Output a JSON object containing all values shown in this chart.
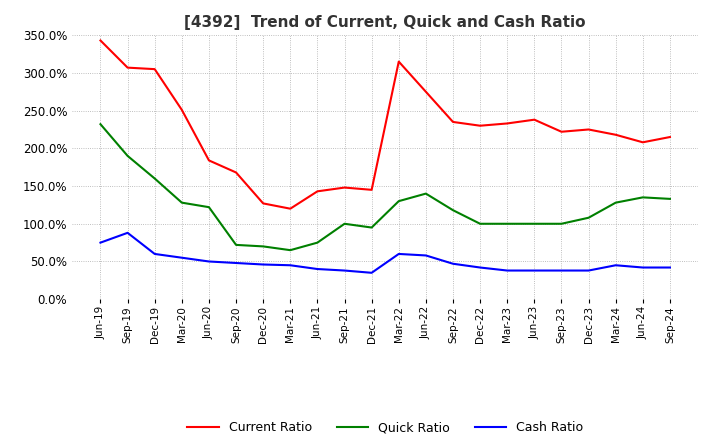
{
  "title": "[4392]  Trend of Current, Quick and Cash Ratio",
  "x_labels": [
    "Jun-19",
    "Sep-19",
    "Dec-19",
    "Mar-20",
    "Jun-20",
    "Sep-20",
    "Dec-20",
    "Mar-21",
    "Jun-21",
    "Sep-21",
    "Dec-21",
    "Mar-22",
    "Jun-22",
    "Sep-22",
    "Dec-22",
    "Mar-23",
    "Jun-23",
    "Sep-23",
    "Dec-23",
    "Mar-24",
    "Jun-24",
    "Sep-24"
  ],
  "current_vals": [
    343,
    307,
    305,
    251,
    184,
    168,
    127,
    120,
    143,
    148,
    145,
    315,
    275,
    235,
    230,
    233,
    238,
    222,
    225,
    218,
    208,
    215
  ],
  "quick_vals": [
    232,
    190,
    160,
    128,
    122,
    72,
    70,
    65,
    75,
    100,
    95,
    130,
    140,
    118,
    100,
    100,
    100,
    100,
    108,
    128,
    135,
    133
  ],
  "cash_vals": [
    75,
    88,
    60,
    55,
    50,
    48,
    46,
    45,
    40,
    38,
    35,
    60,
    58,
    47,
    42,
    38,
    38,
    38,
    38,
    45,
    42,
    42
  ],
  "current_color": "#ff0000",
  "quick_color": "#008000",
  "cash_color": "#0000ff",
  "ylim": [
    0,
    350
  ],
  "yticks": [
    0,
    50,
    100,
    150,
    200,
    250,
    300,
    350
  ],
  "background_color": "#ffffff",
  "grid_color": "#aaaaaa",
  "title_color": "#333333",
  "title_fontsize": 11
}
